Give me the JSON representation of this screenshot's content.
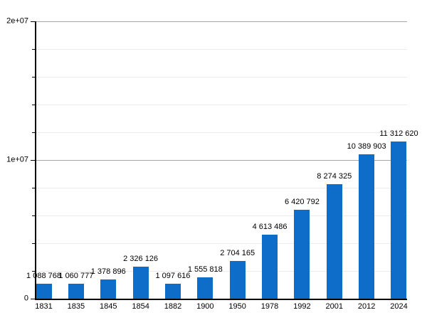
{
  "chart_data": {
    "type": "bar",
    "title": "",
    "xlabel": "",
    "ylabel": "",
    "categories": [
      "1831",
      "1835",
      "1845",
      "1854",
      "1882",
      "1900",
      "1950",
      "1978",
      "1992",
      "2001",
      "2012",
      "2024"
    ],
    "values": [
      1088768,
      1060777,
      1378896,
      2326126,
      1097616,
      1555818,
      2704165,
      4613486,
      6420792,
      8274325,
      10389903,
      11312620
    ],
    "value_labels": [
      "1 088 768",
      "1 060 777",
      "1 378 896",
      "2 326 126",
      "1 097 616",
      "1 555 818",
      "2 704 165",
      "4 613 486",
      "6 420 792",
      "8 274 325",
      "10 389 903",
      "11 312 620"
    ],
    "ylim": [
      0,
      20000000
    ],
    "y_major_ticks": [
      {
        "value": 0,
        "label": "0"
      },
      {
        "value": 10000000,
        "label": "1e+07"
      },
      {
        "value": 20000000,
        "label": "2e+07"
      }
    ],
    "y_minor_step": 2000000,
    "grid": "major-and-minor horizontal",
    "legend": "none",
    "bar_color": "#0d6dc8",
    "major_grid_color": "#a6a6a6",
    "minor_grid_color": "#ebebeb",
    "axis_color": "#000000"
  }
}
